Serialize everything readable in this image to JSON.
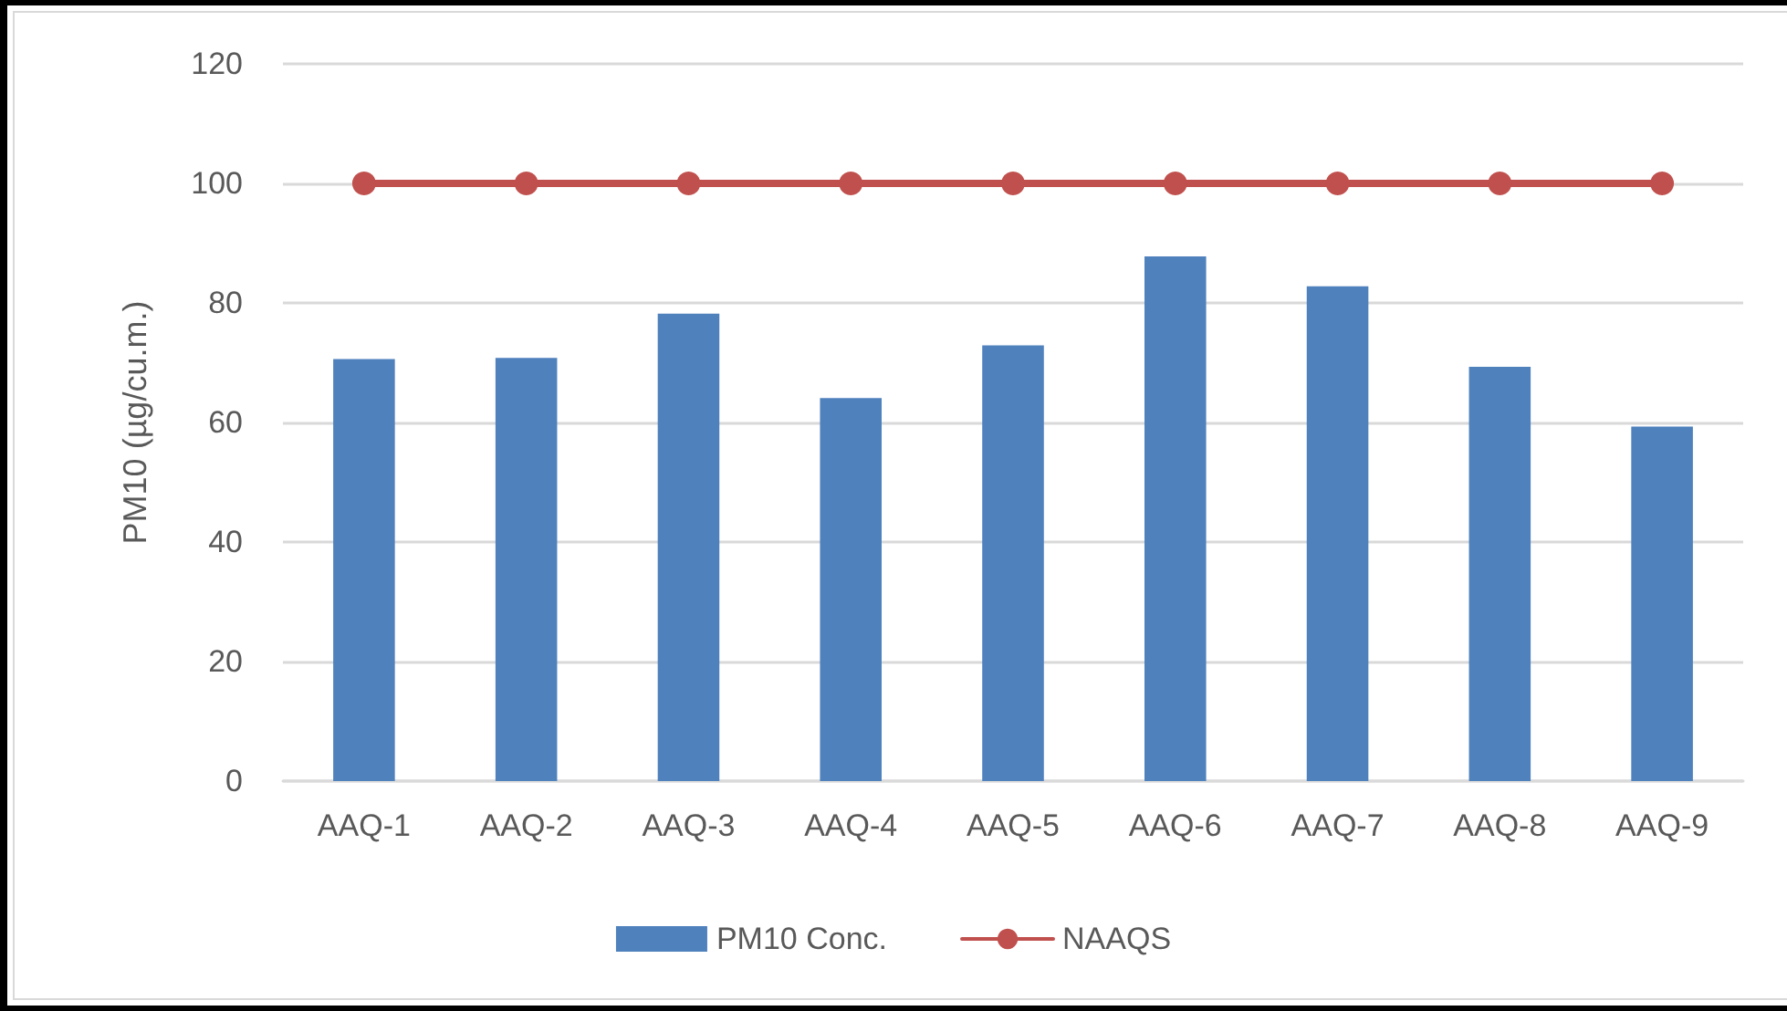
{
  "chart_data": {
    "type": "bar",
    "ylabel": "PM10 (µg/cu.m.)",
    "categories": [
      "AAQ-1",
      "AAQ-2",
      "AAQ-3",
      "AAQ-4",
      "AAQ-5",
      "AAQ-6",
      "AAQ-7",
      "AAQ-8",
      "AAQ-9"
    ],
    "series": [
      {
        "name": "PM10 Conc.",
        "color": "#4f81bd",
        "values": [
          70.6,
          70.8,
          78.2,
          64.1,
          72.9,
          87.8,
          82.8,
          69.3,
          59.3
        ]
      },
      {
        "name": "NAAQS",
        "type": "line",
        "color": "#c0504d",
        "values": [
          100,
          100,
          100,
          100,
          100,
          100,
          100,
          100,
          100
        ]
      }
    ],
    "ylim": [
      0,
      120
    ],
    "yticks": [
      0,
      20,
      40,
      60,
      80,
      100,
      120
    ],
    "grid": "y",
    "legend": "bottom",
    "marker": "circle"
  }
}
